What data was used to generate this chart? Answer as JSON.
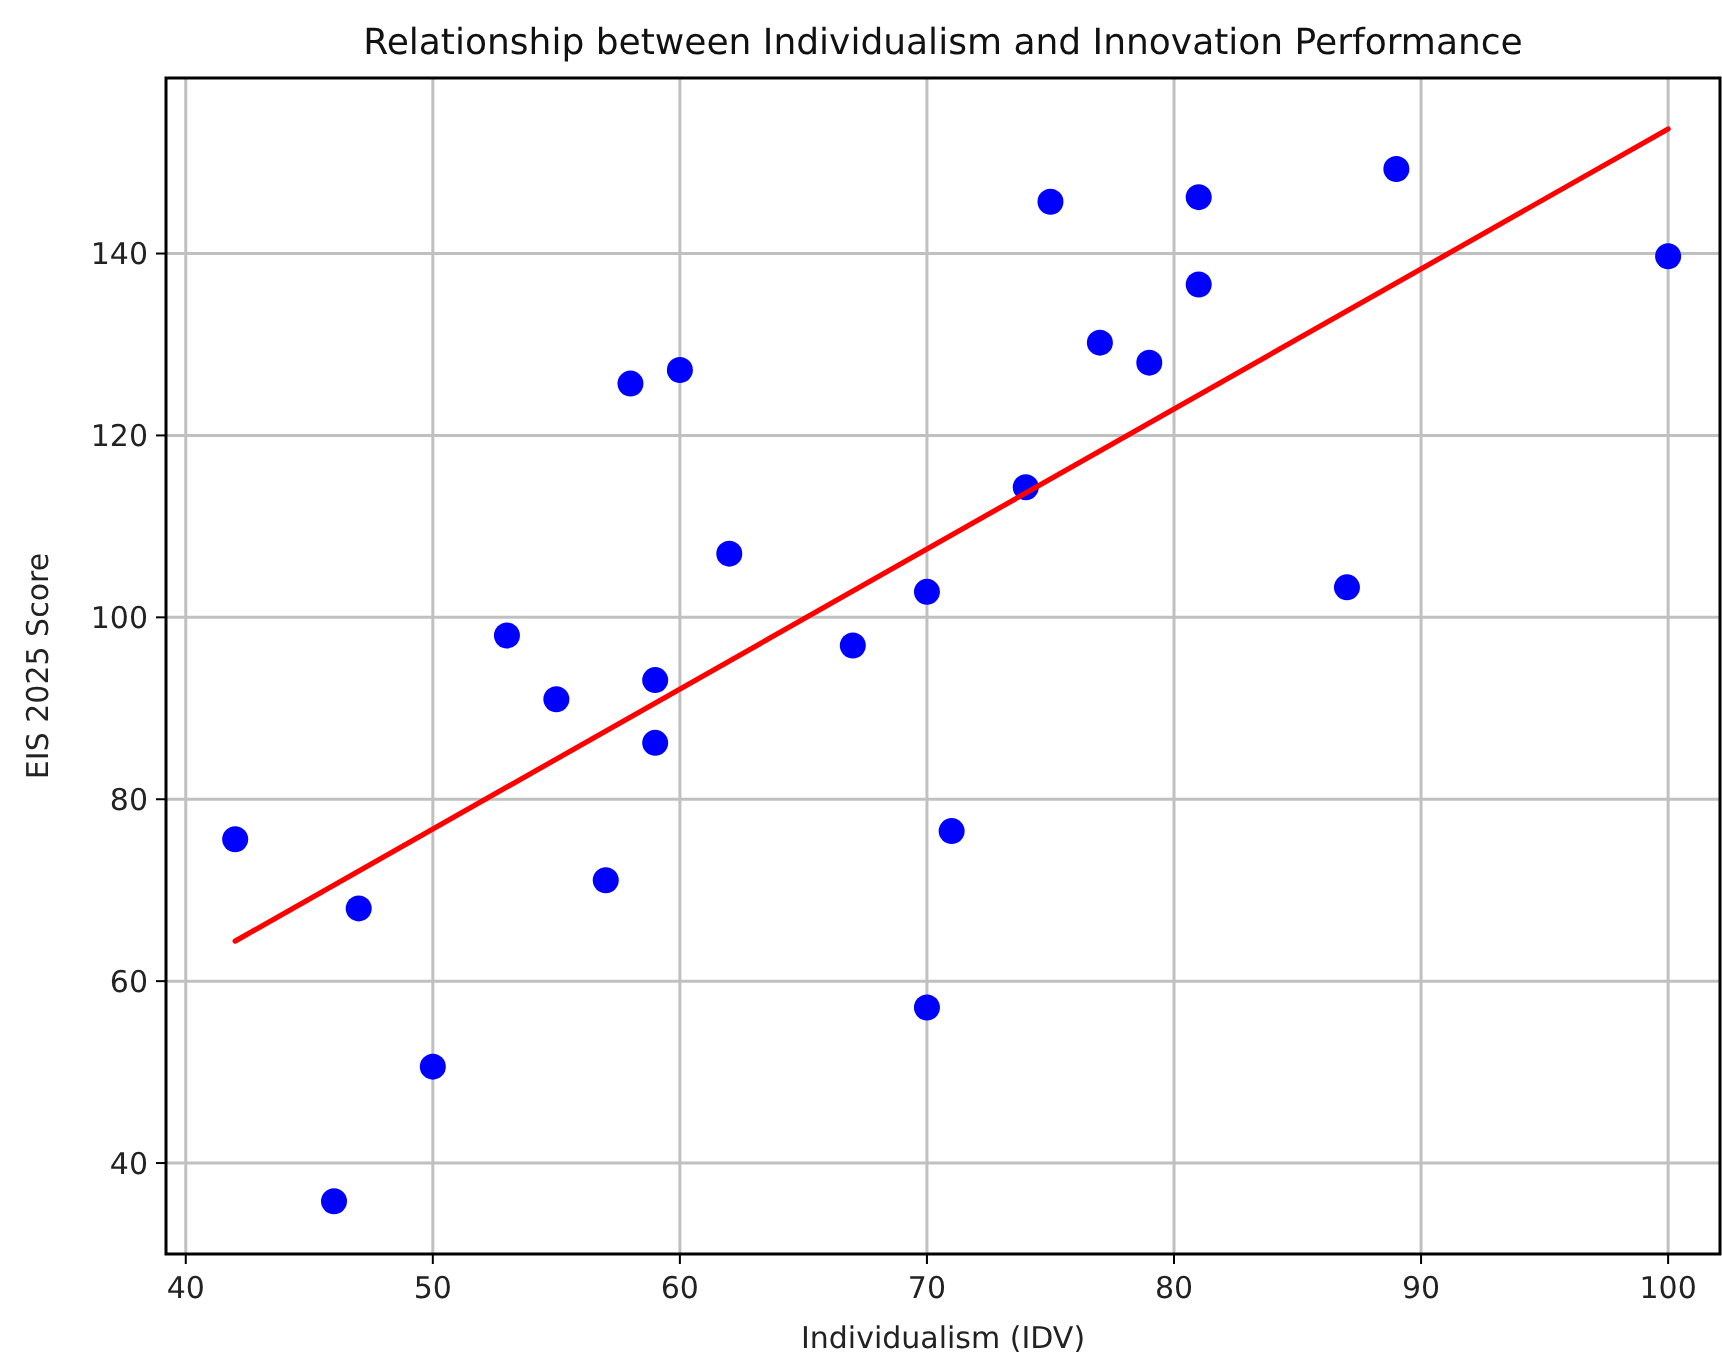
{
  "chart_data": {
    "type": "scatter",
    "title": "Relationship between Individualism and Innovation Performance",
    "xlabel": "Individualism (IDV)",
    "ylabel": "EIS 2025 Score",
    "xlim": [
      39.2,
      102.1
    ],
    "ylim": [
      30,
      159.3
    ],
    "xticks": [
      40,
      50,
      60,
      70,
      80,
      90,
      100
    ],
    "yticks": [
      40,
      60,
      80,
      100,
      120,
      140
    ],
    "grid": true,
    "series": [
      {
        "marker": "circle",
        "color": "#0000ff",
        "x": [
          58,
          60,
          62,
          70,
          53,
          67,
          59,
          55,
          59,
          42,
          47,
          57,
          70,
          50,
          46,
          71,
          75,
          81,
          89,
          100,
          81,
          77,
          79,
          74,
          87
        ],
        "values": [
          125.7,
          127.2,
          107,
          102.8,
          98,
          96.9,
          93.1,
          91,
          86.2,
          75.6,
          68,
          71.1,
          57.1,
          50.6,
          35.8,
          76.5,
          145.7,
          146.2,
          149.3,
          139.7,
          136.6,
          130.2,
          128,
          114.3,
          103.3
        ]
      },
      {
        "type": "line",
        "color": "#ff0000",
        "line_style": "solid",
        "x": [
          42,
          100
        ],
        "values": [
          64.4,
          153.7
        ]
      }
    ]
  }
}
